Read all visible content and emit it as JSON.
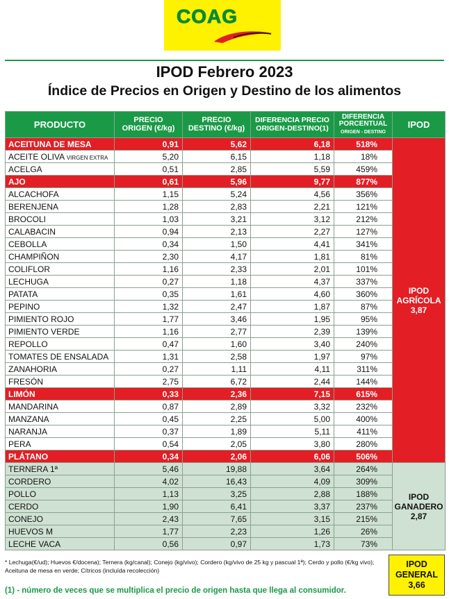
{
  "logo": {
    "text": "COAG"
  },
  "title": "IPOD Febrero 2023",
  "subtitle": "Índice de Precios en Origen y Destino de los alimentos",
  "headers": {
    "producto": "PRODUCTO",
    "precio_origen_1": "PRECIO",
    "precio_origen_2": "ORIGEN (€/kg)",
    "precio_destino_1": "PRECIO",
    "precio_destino_2": "DESTINO (€/kg)",
    "diferencia_1": "DIFERENCIA PRECIO",
    "diferencia_2": "ORIGEN-DESTINO(1)",
    "porcentual_1": "DIFERENCIA",
    "porcentual_2": "PORCENTUAL",
    "porcentual_3": "ORIGEN - DESTINO",
    "ipod": "IPOD"
  },
  "agricola_rows": [
    {
      "name": "ACEITUNA DE MESA",
      "origen": "0,91",
      "destino": "5,62",
      "dif": "6,18",
      "pct": "518%",
      "hl": true
    },
    {
      "name": "ACEITE OLIVA",
      "suffix": "VIRGEN EXTRA",
      "origen": "5,20",
      "destino": "6,15",
      "dif": "1,18",
      "pct": "18%",
      "hl": false
    },
    {
      "name": "ACELGA",
      "origen": "0,51",
      "destino": "2,85",
      "dif": "5,59",
      "pct": "459%",
      "hl": false
    },
    {
      "name": "AJO",
      "origen": "0,61",
      "destino": "5,96",
      "dif": "9,77",
      "pct": "877%",
      "hl": true
    },
    {
      "name": "ALCACHOFA",
      "origen": "1,15",
      "destino": "5,24",
      "dif": "4,56",
      "pct": "356%",
      "hl": false
    },
    {
      "name": "BERENJENA",
      "origen": "1,28",
      "destino": "2,83",
      "dif": "2,21",
      "pct": "121%",
      "hl": false
    },
    {
      "name": "BROCOLI",
      "origen": "1,03",
      "destino": "3,21",
      "dif": "3,12",
      "pct": "212%",
      "hl": false
    },
    {
      "name": "CALABACIN",
      "origen": "0,94",
      "destino": "2,13",
      "dif": "2,27",
      "pct": "127%",
      "hl": false
    },
    {
      "name": "CEBOLLA",
      "origen": "0,34",
      "destino": "1,50",
      "dif": "4,41",
      "pct": "341%",
      "hl": false
    },
    {
      "name": "CHAMPIÑON",
      "origen": "2,30",
      "destino": "4,17",
      "dif": "1,81",
      "pct": "81%",
      "hl": false
    },
    {
      "name": "COLIFLOR",
      "origen": "1,16",
      "destino": "2,33",
      "dif": "2,01",
      "pct": "101%",
      "hl": false
    },
    {
      "name": "LECHUGA",
      "origen": "0,27",
      "destino": "1,18",
      "dif": "4,37",
      "pct": "337%",
      "hl": false
    },
    {
      "name": "PATATA",
      "origen": "0,35",
      "destino": "1,61",
      "dif": "4,60",
      "pct": "360%",
      "hl": false
    },
    {
      "name": "PEPINO",
      "origen": "1,32",
      "destino": "2,47",
      "dif": "1,87",
      "pct": "87%",
      "hl": false
    },
    {
      "name": "PIMIENTO ROJO",
      "origen": "1,77",
      "destino": "3,46",
      "dif": "1,95",
      "pct": "95%",
      "hl": false
    },
    {
      "name": "PIMIENTO VERDE",
      "origen": "1,16",
      "destino": "2,77",
      "dif": "2,39",
      "pct": "139%",
      "hl": false
    },
    {
      "name": "REPOLLO",
      "origen": "0,47",
      "destino": "1,60",
      "dif": "3,40",
      "pct": "240%",
      "hl": false
    },
    {
      "name": "TOMATES DE ENSALADA",
      "origen": "1,31",
      "destino": "2,58",
      "dif": "1,97",
      "pct": "97%",
      "hl": false
    },
    {
      "name": "ZANAHORIA",
      "origen": "0,27",
      "destino": "1,11",
      "dif": "4,11",
      "pct": "311%",
      "hl": false
    },
    {
      "name": "FRESÓN",
      "origen": "2,75",
      "destino": "6,72",
      "dif": "2,44",
      "pct": "144%",
      "hl": false
    },
    {
      "name": "LIMÓN",
      "origen": "0,33",
      "destino": "2,36",
      "dif": "7,15",
      "pct": "615%",
      "hl": true
    },
    {
      "name": "MANDARINA",
      "origen": "0,87",
      "destino": "2,89",
      "dif": "3,32",
      "pct": "232%",
      "hl": false
    },
    {
      "name": "MANZANA",
      "origen": "0,45",
      "destino": "2,25",
      "dif": "5,00",
      "pct": "400%",
      "hl": false
    },
    {
      "name": "NARANJA",
      "origen": "0,37",
      "destino": "1,89",
      "dif": "5,11",
      "pct": "411%",
      "hl": false
    },
    {
      "name": "PERA",
      "origen": "0,54",
      "destino": "2,05",
      "dif": "3,80",
      "pct": "280%",
      "hl": false
    },
    {
      "name": "PLÁTANO",
      "origen": "0,34",
      "destino": "2,06",
      "dif": "6,06",
      "pct": "506%",
      "hl": true
    }
  ],
  "ganadero_rows": [
    {
      "name": "TERNERA 1ª",
      "origen": "5,46",
      "destino": "19,88",
      "dif": "3,64",
      "pct": "264%"
    },
    {
      "name": "CORDERO",
      "origen": "4,02",
      "destino": "16,43",
      "dif": "4,09",
      "pct": "309%"
    },
    {
      "name": "POLLO",
      "origen": "1,13",
      "destino": "3,25",
      "dif": "2,88",
      "pct": "188%"
    },
    {
      "name": "CERDO",
      "origen": "1,90",
      "destino": "6,41",
      "dif": "3,37",
      "pct": "237%"
    },
    {
      "name": "CONEJO",
      "origen": "2,43",
      "destino": "7,65",
      "dif": "3,15",
      "pct": "215%"
    },
    {
      "name": "HUEVOS M",
      "origen": "1,77",
      "destino": "2,23",
      "dif": "1,26",
      "pct": "26%"
    },
    {
      "name": "LECHE VACA",
      "origen": "0,56",
      "destino": "0,97",
      "dif": "1,73",
      "pct": "73%"
    }
  ],
  "ipod_agricola": {
    "line1": "IPOD",
    "line2": "AGRÍCOLA",
    "value": "3,87"
  },
  "ipod_ganadero": {
    "line1": "IPOD",
    "line2": "GANADERO",
    "value": "2,87"
  },
  "ipod_general": {
    "line1": "IPOD",
    "line2": "GENERAL",
    "value": "3,66"
  },
  "footnote": "* Lechuga(€/ud); Huevos €/docena); Ternera (kg/canal); Conejo (kg/vivo); Cordero (kg/vivo de 25 kg y pascual 1ª); Cerdo y pollo (€/kg vivo); Aceituna de mesa en verde; Cítricos (incluída recolección)",
  "footnote2": "(1) - número de veces que se multiplica el precio de origen hasta que llega al consumidor.",
  "colors": {
    "green": "#1a9a47",
    "red": "#e31e24",
    "yellow": "#fff200",
    "pale_green": "#cfe1d3"
  }
}
